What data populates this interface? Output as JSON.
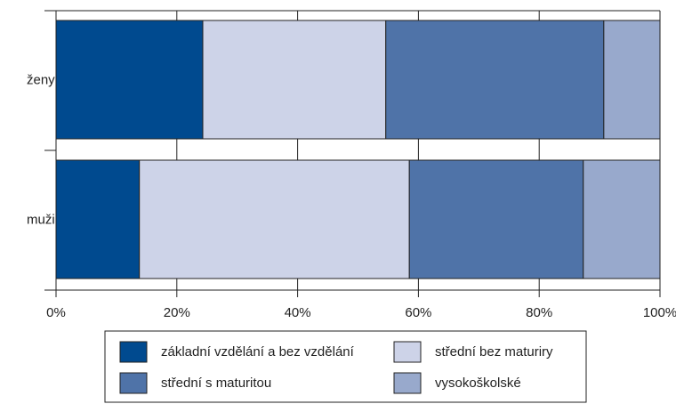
{
  "chart_data": {
    "type": "stacked-barh",
    "categories": [
      "ženy",
      "muži"
    ],
    "series": [
      {
        "name": "základní vzdělání a bez vzdělání",
        "color": "#004a8f",
        "values": [
          24.3,
          13.8
        ]
      },
      {
        "name": "střední bez maturiry",
        "color": "#cdd3e8",
        "values": [
          30.3,
          44.7
        ]
      },
      {
        "name": "střední s maturitou",
        "color": "#4f73a8",
        "values": [
          36.1,
          28.8
        ]
      },
      {
        "name": "vysokoškolské",
        "color": "#98a9cc",
        "values": [
          9.3,
          12.7
        ]
      }
    ],
    "xlim": [
      0,
      100
    ],
    "xticks": [
      {
        "value": 0,
        "label": "0%"
      },
      {
        "value": 20,
        "label": "20%"
      },
      {
        "value": 40,
        "label": "40%"
      },
      {
        "value": 60,
        "label": "60%"
      },
      {
        "value": 80,
        "label": "80%"
      },
      {
        "value": 100,
        "label": "100%"
      }
    ],
    "grid": true
  }
}
